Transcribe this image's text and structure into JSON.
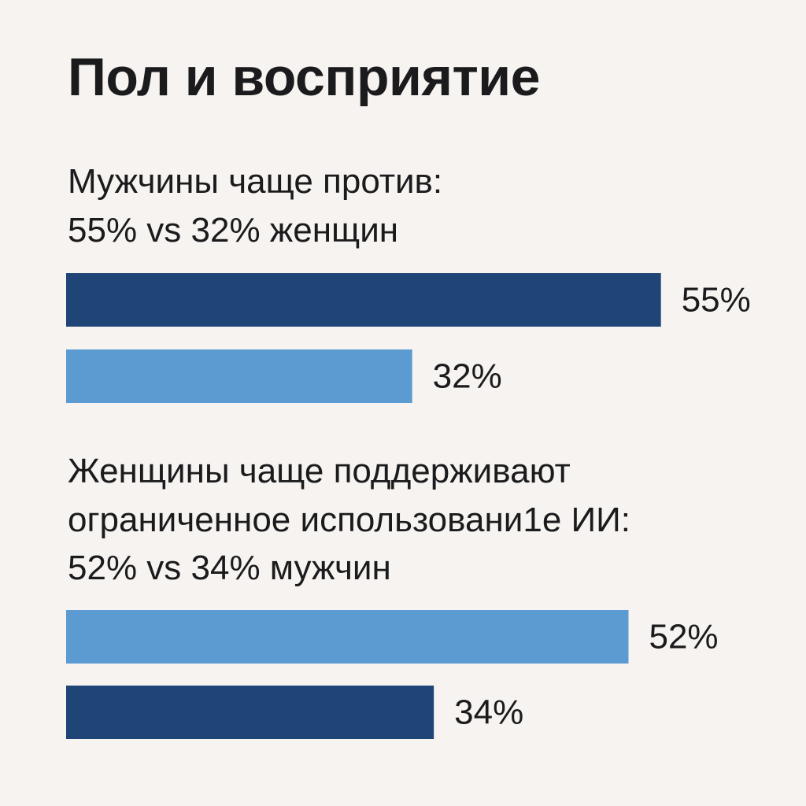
{
  "title": "Пол и восприятие",
  "colors": {
    "background": "#f6f3f0",
    "dark_blue": "#1f4576",
    "light_blue": "#5b9bd1",
    "text": "#1b1b1d"
  },
  "chart_data": [
    {
      "type": "bar",
      "orientation": "horizontal",
      "subtitle_lines": [
        "Мужчины чаще против:",
        "55% vs 32% женщин"
      ],
      "values": [
        55,
        32
      ],
      "labels": [
        "55%",
        "32%"
      ],
      "bar_colors": [
        "#1f4576",
        "#5b9bd1"
      ],
      "value_unit": "%"
    },
    {
      "type": "bar",
      "orientation": "horizontal",
      "subtitle_lines": [
        "Женщины чаще поддерживают",
        "ограниченное использовани1е ИИ:",
        "52% vs 34% мужчин"
      ],
      "values": [
        52,
        34
      ],
      "labels": [
        "52%",
        "34%"
      ],
      "bar_colors": [
        "#5b9bd1",
        "#1f4576"
      ],
      "value_unit": "%"
    }
  ]
}
